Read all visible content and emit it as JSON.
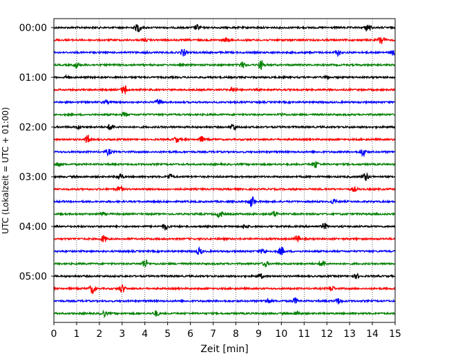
{
  "chart_data": {
    "type": "line",
    "title": "",
    "xlabel": "Zeit  [min]",
    "ylabel": "UTC (Lokalzeit = UTC + 01:00)",
    "xlim": [
      0,
      15
    ],
    "x_ticks": [
      0,
      1,
      2,
      3,
      4,
      5,
      6,
      7,
      8,
      9,
      10,
      11,
      12,
      13,
      14,
      15
    ],
    "x_tick_labels": [
      "0",
      "1",
      "2",
      "3",
      "4",
      "5",
      "6",
      "7",
      "8",
      "9",
      "10",
      "11",
      "12",
      "13",
      "14",
      "15"
    ],
    "y_tick_labels": [
      "00:00",
      "01:00",
      "02:00",
      "03:00",
      "04:00",
      "05:00"
    ],
    "trace_interval_minutes": 15,
    "trace_count": 24,
    "color_cycle": [
      "#000000",
      "#ff0000",
      "#0000ff",
      "#008000"
    ],
    "vertical_grid": "dotted",
    "series": [
      {
        "start": "00:00",
        "color": "#000000",
        "events": [
          [
            3.7,
            6
          ],
          [
            6.3,
            4
          ],
          [
            13.8,
            6
          ]
        ]
      },
      {
        "start": "00:15",
        "color": "#ff0000",
        "events": [
          [
            14.4,
            7
          ],
          [
            7.6,
            3
          ],
          [
            4.0,
            2
          ]
        ]
      },
      {
        "start": "00:30",
        "color": "#0000ff",
        "events": [
          [
            5.7,
            5
          ],
          [
            12.5,
            4
          ],
          [
            14.9,
            3
          ]
        ]
      },
      {
        "start": "00:45",
        "color": "#008000",
        "events": [
          [
            1.0,
            4
          ],
          [
            8.3,
            4
          ],
          [
            9.1,
            6
          ]
        ]
      },
      {
        "start": "01:00",
        "color": "#000000",
        "events": [
          [
            0.6,
            2
          ],
          [
            12.0,
            2
          ]
        ]
      },
      {
        "start": "01:15",
        "color": "#ff0000",
        "events": [
          [
            3.1,
            7
          ],
          [
            7.9,
            4
          ]
        ]
      },
      {
        "start": "01:30",
        "color": "#0000ff",
        "events": [
          [
            4.6,
            4
          ],
          [
            2.3,
            2
          ]
        ]
      },
      {
        "start": "01:45",
        "color": "#008000",
        "events": [
          [
            3.1,
            3
          ],
          [
            10.0,
            2
          ]
        ]
      },
      {
        "start": "02:00",
        "color": "#000000",
        "events": [
          [
            2.5,
            5
          ],
          [
            7.9,
            5
          ],
          [
            1.1,
            2
          ]
        ]
      },
      {
        "start": "02:15",
        "color": "#ff0000",
        "events": [
          [
            1.5,
            6
          ],
          [
            5.4,
            4
          ],
          [
            6.5,
            4
          ]
        ]
      },
      {
        "start": "02:30",
        "color": "#0000ff",
        "events": [
          [
            2.4,
            4
          ],
          [
            13.6,
            6
          ]
        ]
      },
      {
        "start": "02:45",
        "color": "#008000",
        "events": [
          [
            0.2,
            3
          ],
          [
            11.5,
            5
          ]
        ]
      },
      {
        "start": "03:00",
        "color": "#000000",
        "events": [
          [
            2.9,
            5
          ],
          [
            5.1,
            4
          ],
          [
            13.7,
            6
          ]
        ]
      },
      {
        "start": "03:15",
        "color": "#ff0000",
        "events": [
          [
            2.9,
            4
          ],
          [
            13.2,
            3
          ]
        ]
      },
      {
        "start": "03:30",
        "color": "#0000ff",
        "events": [
          [
            8.7,
            8
          ],
          [
            12.3,
            3
          ]
        ]
      },
      {
        "start": "03:45",
        "color": "#008000",
        "events": [
          [
            7.3,
            5
          ],
          [
            9.7,
            4
          ],
          [
            2.1,
            2
          ]
        ]
      },
      {
        "start": "04:00",
        "color": "#000000",
        "events": [
          [
            4.9,
            5
          ],
          [
            11.9,
            4
          ],
          [
            8.4,
            3
          ]
        ]
      },
      {
        "start": "04:15",
        "color": "#ff0000",
        "events": [
          [
            2.2,
            5
          ],
          [
            10.7,
            5
          ]
        ]
      },
      {
        "start": "04:30",
        "color": "#0000ff",
        "events": [
          [
            6.4,
            5
          ],
          [
            10.0,
            6
          ],
          [
            9.2,
            4
          ]
        ]
      },
      {
        "start": "04:45",
        "color": "#008000",
        "events": [
          [
            4.0,
            6
          ],
          [
            9.3,
            4
          ],
          [
            11.8,
            5
          ]
        ]
      },
      {
        "start": "05:00",
        "color": "#000000",
        "events": [
          [
            9.1,
            3
          ],
          [
            13.3,
            3
          ]
        ]
      },
      {
        "start": "05:15",
        "color": "#ff0000",
        "events": [
          [
            1.7,
            7
          ],
          [
            3.0,
            6
          ],
          [
            12.2,
            4
          ]
        ]
      },
      {
        "start": "05:30",
        "color": "#0000ff",
        "events": [
          [
            9.4,
            4
          ],
          [
            10.6,
            4
          ],
          [
            12.5,
            4
          ]
        ]
      },
      {
        "start": "05:45",
        "color": "#008000",
        "events": [
          [
            2.2,
            4
          ],
          [
            4.5,
            4
          ],
          [
            10.7,
            3
          ]
        ]
      }
    ]
  }
}
